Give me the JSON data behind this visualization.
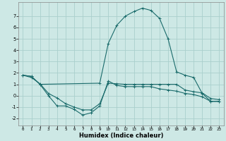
{
  "xlabel": "Humidex (Indice chaleur)",
  "bg_color": "#cde8e5",
  "grid_color": "#aacfcc",
  "line_color": "#1a6b6b",
  "xlim": [
    -0.5,
    23.5
  ],
  "ylim": [
    -2.6,
    8.2
  ],
  "yticks": [
    -2,
    -1,
    0,
    1,
    2,
    3,
    4,
    5,
    6,
    7
  ],
  "xticks": [
    0,
    1,
    2,
    3,
    4,
    5,
    6,
    7,
    8,
    9,
    10,
    11,
    12,
    13,
    14,
    15,
    16,
    17,
    18,
    19,
    20,
    21,
    22,
    23
  ],
  "line1_x": [
    0,
    1,
    2,
    3,
    4,
    5,
    6,
    7,
    8,
    9,
    10,
    11,
    12,
    13,
    14,
    15,
    16,
    17,
    18,
    19,
    20,
    21,
    22,
    23
  ],
  "line1_y": [
    1.8,
    1.7,
    1.0,
    0.0,
    -0.9,
    -0.9,
    -1.2,
    -1.7,
    -1.5,
    -0.9,
    1.3,
    0.9,
    0.8,
    0.8,
    0.8,
    0.8,
    0.6,
    0.5,
    0.4,
    0.2,
    0.1,
    -0.1,
    -0.5,
    -0.5
  ],
  "line2_x": [
    0,
    1,
    2,
    3,
    4,
    5,
    6,
    7,
    8,
    9,
    10,
    11,
    12,
    13,
    14,
    15,
    16,
    17,
    18,
    19,
    20,
    21,
    22,
    23
  ],
  "line2_y": [
    1.8,
    1.6,
    1.05,
    0.2,
    -0.2,
    -0.7,
    -1.0,
    -1.25,
    -1.25,
    -0.7,
    1.1,
    1.05,
    1.0,
    1.0,
    1.0,
    1.0,
    1.0,
    1.0,
    1.0,
    0.5,
    0.35,
    0.25,
    -0.25,
    -0.35
  ],
  "line3_x": [
    0,
    1,
    2,
    9,
    10,
    11,
    12,
    13,
    14,
    15,
    16,
    17,
    18,
    19,
    20,
    21,
    22,
    23
  ],
  "line3_y": [
    1.8,
    1.7,
    1.0,
    1.1,
    4.6,
    6.2,
    7.0,
    7.4,
    7.7,
    7.5,
    6.8,
    5.0,
    2.1,
    1.8,
    1.6,
    0.2,
    -0.5,
    -0.5
  ],
  "marker": "+",
  "markersize": 2.5,
  "linewidth": 0.8
}
